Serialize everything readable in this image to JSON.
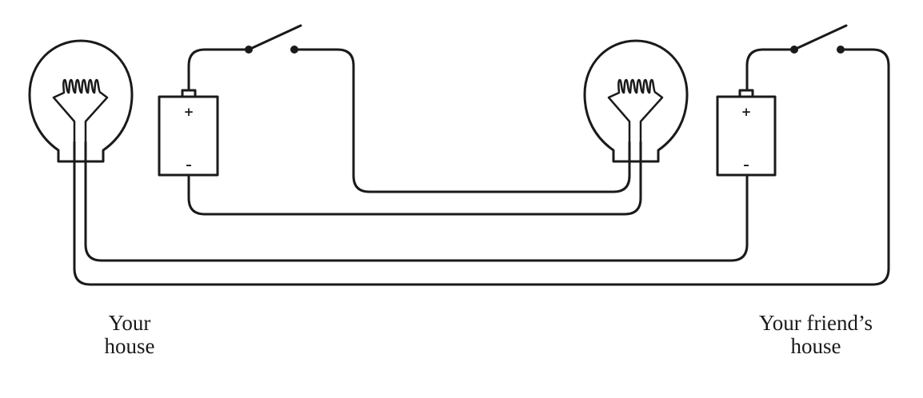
{
  "labels": {
    "your_house": {
      "line1": "Your",
      "line2": "house"
    },
    "friends_house": {
      "line1": "Your friend’s",
      "line2": "house"
    }
  },
  "battery": {
    "plus": "+",
    "minus": "–"
  },
  "colors": {
    "stroke": "#1a1a1a",
    "background": "#ffffff"
  }
}
